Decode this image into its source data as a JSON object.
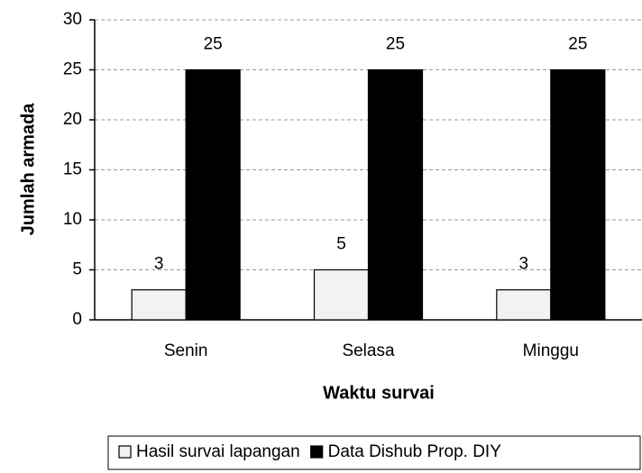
{
  "chart_data": {
    "type": "bar",
    "categories": [
      "Senin",
      "Selasa",
      "Minggu"
    ],
    "series": [
      {
        "name": "Hasil survai lapangan",
        "color": "#f2f2f2",
        "values": [
          3,
          5,
          3
        ]
      },
      {
        "name": "Data Dishub Prop. DIY",
        "color": "#000000",
        "values": [
          25,
          25,
          25
        ]
      }
    ],
    "ylim": [
      0,
      30
    ],
    "yticks": [
      0,
      5,
      10,
      15,
      20,
      25,
      30
    ],
    "grid": true,
    "xlabel": "Waktu survai",
    "ylabel": "Jumlah armada",
    "legend": "bottom"
  }
}
